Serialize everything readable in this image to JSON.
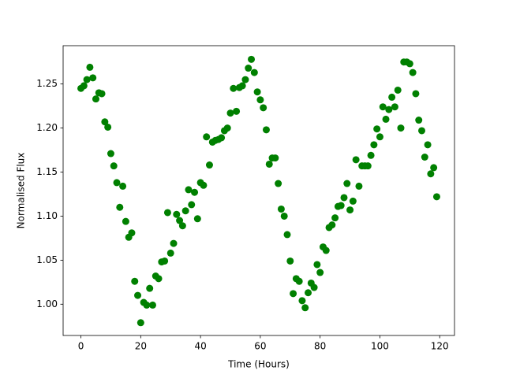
{
  "chart_data": {
    "type": "scatter",
    "xlabel": "Time (Hours)",
    "ylabel": "Normalised Flux",
    "color": "#008000",
    "x": [
      0,
      1,
      2,
      3,
      4,
      5,
      6,
      7,
      8,
      9,
      10,
      11,
      12,
      13,
      14,
      15,
      16,
      17,
      18,
      19,
      20,
      21,
      22,
      23,
      24,
      25,
      26,
      27,
      28,
      29,
      30,
      31,
      32,
      33,
      34,
      35,
      36,
      37,
      38,
      39,
      40,
      41,
      42,
      43,
      44,
      45,
      46,
      47,
      48,
      49,
      50,
      51,
      52,
      53,
      54,
      55,
      56,
      57,
      58,
      59,
      60,
      61,
      62,
      63,
      64,
      65,
      66,
      67,
      68,
      69,
      70,
      71,
      72,
      73,
      74,
      75,
      76,
      77,
      78,
      79,
      80,
      81,
      82,
      83,
      84,
      85,
      86,
      87,
      88,
      89,
      90,
      91,
      92,
      93,
      94,
      95,
      96,
      97,
      98,
      99,
      100,
      101,
      102,
      103,
      104,
      105,
      106,
      107,
      108,
      109,
      110,
      111,
      112,
      113,
      114,
      115,
      116,
      117,
      118,
      119
    ],
    "values": [
      1.245,
      1.248,
      1.255,
      1.269,
      1.257,
      1.233,
      1.24,
      1.239,
      1.207,
      1.201,
      1.171,
      1.157,
      1.138,
      1.11,
      1.134,
      1.094,
      1.076,
      1.081,
      1.026,
      1.01,
      0.979,
      1.002,
      0.999,
      1.018,
      0.999,
      1.032,
      1.029,
      1.048,
      1.049,
      1.104,
      1.058,
      1.069,
      1.102,
      1.095,
      1.089,
      1.106,
      1.13,
      1.113,
      1.127,
      1.097,
      1.138,
      1.135,
      1.19,
      1.158,
      1.184,
      1.186,
      1.187,
      1.189,
      1.197,
      1.2,
      1.217,
      1.245,
      1.219,
      1.246,
      1.248,
      1.255,
      1.268,
      1.278,
      1.263,
      1.241,
      1.232,
      1.223,
      1.198,
      1.159,
      1.166,
      1.166,
      1.137,
      1.108,
      1.1,
      1.079,
      1.049,
      1.012,
      1.029,
      1.026,
      1.004,
      0.996,
      1.013,
      1.024,
      1.019,
      1.045,
      1.036,
      1.065,
      1.061,
      1.087,
      1.09,
      1.098,
      1.111,
      1.112,
      1.121,
      1.137,
      1.107,
      1.117,
      1.164,
      1.134,
      1.157,
      1.157,
      1.157,
      1.169,
      1.181,
      1.199,
      1.19,
      1.224,
      1.21,
      1.221,
      1.235,
      1.224,
      1.243,
      1.2,
      1.275,
      1.275,
      1.273,
      1.263,
      1.239,
      1.209,
      1.197,
      1.167,
      1.181,
      1.148,
      1.155,
      1.122
    ],
    "xlim": [
      -5.95,
      124.95
    ],
    "xticks": [
      0,
      20,
      40,
      60,
      80,
      100,
      120
    ],
    "ylim": [
      0.9645,
      1.2935
    ],
    "yticks": [
      {
        "value": 1.0,
        "label": "1.00"
      },
      {
        "value": 1.05,
        "label": "1.05"
      },
      {
        "value": 1.1,
        "label": "1.10"
      },
      {
        "value": 1.15,
        "label": "1.15"
      },
      {
        "value": 1.2,
        "label": "1.20"
      },
      {
        "value": 1.25,
        "label": "1.25"
      }
    ]
  }
}
